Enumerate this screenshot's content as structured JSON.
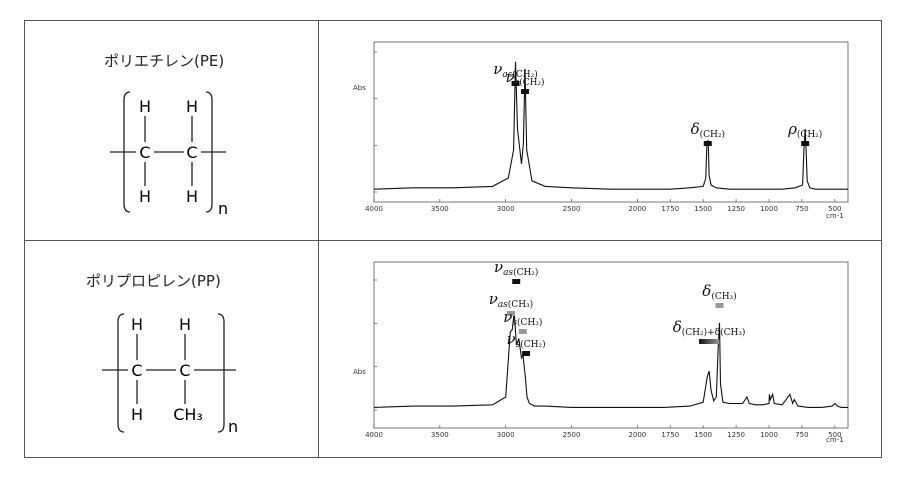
{
  "polymers": [
    {
      "name": "ポリエチレン(PE)",
      "atoms": {
        "tl": "H",
        "tr": "H",
        "ml": "C",
        "mr": "C",
        "bl": "H",
        "br": "H"
      },
      "subscript": "n"
    },
    {
      "name": "ポリプロピレン(PP)",
      "atoms": {
        "tl": "H",
        "tr": "H",
        "ml": "C",
        "mr": "C",
        "bl": "H",
        "br": "CH₃"
      },
      "subscript": "n"
    }
  ],
  "chart_data": [
    {
      "type": "line",
      "title": "",
      "ylabel": "Abs",
      "xlabel": "cm-1",
      "xlim": [
        4000,
        400
      ],
      "x_reversed": true,
      "x_ticks": [
        4000,
        3500,
        3000,
        2500,
        2000,
        1750,
        1500,
        1250,
        1000,
        750,
        500
      ],
      "x_tick_labels": [
        "4000",
        "3500",
        "3000",
        "2500",
        "2000",
        "1750",
        "1500",
        "1250",
        "1000",
        "750",
        "500"
      ],
      "ylim": [
        0,
        1
      ],
      "series": [
        {
          "x": [
            4000,
            3700,
            3400,
            3100,
            2980,
            2940,
            2925,
            2910,
            2880,
            2865,
            2853,
            2840,
            2800,
            2700,
            2500,
            2200,
            2000,
            1750,
            1600,
            1500,
            1480,
            1472,
            1462,
            1455,
            1440,
            1400,
            1300,
            1200,
            1100,
            1000,
            900,
            800,
            745,
            735,
            725,
            718,
            710,
            690,
            650,
            600,
            500,
            400
          ],
          "y": [
            0.02,
            0.03,
            0.03,
            0.04,
            0.1,
            0.3,
            0.93,
            0.45,
            0.2,
            0.35,
            0.88,
            0.3,
            0.08,
            0.04,
            0.03,
            0.02,
            0.02,
            0.02,
            0.03,
            0.04,
            0.1,
            0.35,
            0.37,
            0.12,
            0.05,
            0.03,
            0.02,
            0.02,
            0.02,
            0.02,
            0.02,
            0.03,
            0.05,
            0.3,
            0.45,
            0.3,
            0.08,
            0.03,
            0.02,
            0.02,
            0.02,
            0.02
          ]
        }
      ],
      "annotations": [
        {
          "symbol": "ν",
          "sub": "as",
          "group": "(CH₂)",
          "x": 2925
        },
        {
          "symbol": "ν",
          "sub": "s",
          "group": "(CH₂)",
          "x": 2853
        },
        {
          "symbol": "δ",
          "sub": "",
          "group": "(CH₂)",
          "x": 1465
        },
        {
          "symbol": "ρ",
          "sub": "",
          "group": "(CH₂)",
          "x": 725
        }
      ]
    },
    {
      "type": "line",
      "title": "",
      "ylabel": "Abs",
      "xlabel": "cm-1",
      "xlim": [
        4000,
        400
      ],
      "x_reversed": true,
      "x_ticks": [
        4000,
        3500,
        3000,
        2500,
        2000,
        1750,
        1500,
        1250,
        1000,
        750,
        500
      ],
      "x_tick_labels": [
        "4000",
        "3500",
        "3000",
        "2500",
        "2000",
        "1750",
        "1500",
        "1250",
        "1000",
        "750",
        "500"
      ],
      "ylim": [
        0,
        1
      ],
      "series": [
        {
          "x": [
            4000,
            3700,
            3400,
            3100,
            3000,
            2965,
            2950,
            2935,
            2918,
            2900,
            2880,
            2868,
            2850,
            2838,
            2820,
            2780,
            2700,
            2500,
            2200,
            2000,
            1800,
            1600,
            1500,
            1470,
            1455,
            1440,
            1420,
            1400,
            1385,
            1376,
            1368,
            1350,
            1300,
            1250,
            1200,
            1168,
            1150,
            1100,
            1050,
            1000,
            997,
            990,
            973,
            960,
            900,
            841,
            820,
            808,
            780,
            700,
            600,
            520,
            500,
            480,
            450,
            400
          ],
          "y": [
            0.02,
            0.03,
            0.03,
            0.04,
            0.1,
            0.6,
            0.62,
            0.75,
            0.5,
            0.55,
            0.4,
            0.42,
            0.25,
            0.1,
            0.05,
            0.03,
            0.03,
            0.02,
            0.02,
            0.02,
            0.02,
            0.03,
            0.06,
            0.25,
            0.3,
            0.15,
            0.07,
            0.1,
            0.5,
            0.67,
            0.2,
            0.06,
            0.05,
            0.05,
            0.05,
            0.1,
            0.05,
            0.04,
            0.04,
            0.05,
            0.12,
            0.08,
            0.12,
            0.05,
            0.04,
            0.12,
            0.05,
            0.08,
            0.03,
            0.02,
            0.02,
            0.03,
            0.05,
            0.03,
            0.02,
            0.02
          ]
        }
      ],
      "annotations": [
        {
          "symbol": "ν",
          "sub": "as",
          "group": "(CH₂)",
          "x": 2920
        },
        {
          "symbol": "ν",
          "sub": "as",
          "group": "(CH₃)",
          "x": 2960
        },
        {
          "symbol": "ν",
          "sub": "s",
          "group": "(CH₃)",
          "x": 2870
        },
        {
          "symbol": "ν",
          "sub": "s",
          "group": "(CH₂)",
          "x": 2845
        },
        {
          "symbol": "δ",
          "sub": "",
          "group": "(CH₂)+δ(CH₃)",
          "x": 1455
        },
        {
          "symbol": "δ",
          "sub": "",
          "group": "(CH₃)",
          "x": 1376
        }
      ]
    }
  ],
  "colors": {
    "line": "#111111",
    "frame": "#555555",
    "marker_dark": "#111111",
    "marker_gray": "#999999"
  }
}
